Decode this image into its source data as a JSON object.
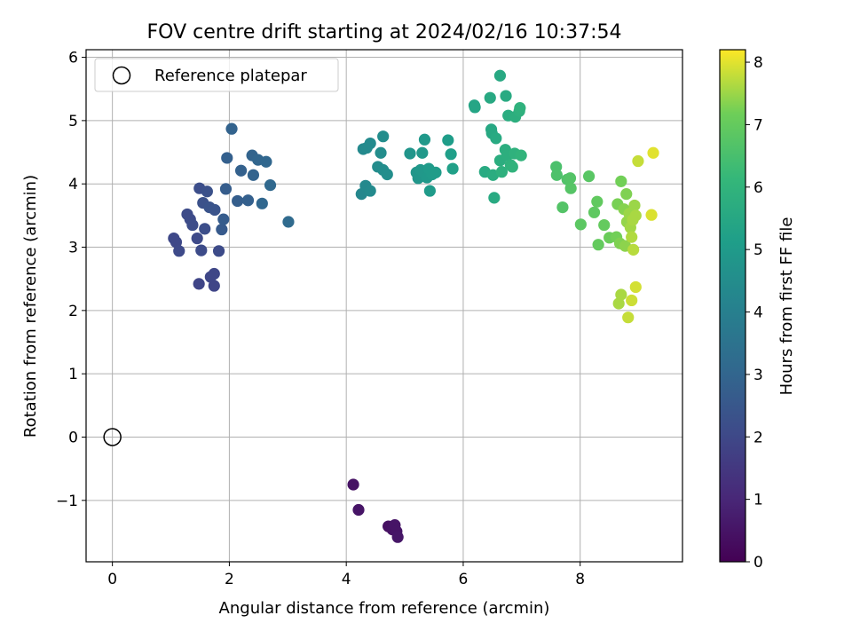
{
  "chart_data": {
    "type": "scatter",
    "title": "FOV centre drift starting at 2024/02/16 10:37:54",
    "xlabel": "Angular distance from reference (arcmin)",
    "ylabel": "Rotation from reference (arcmin)",
    "xlim": [
      -0.45,
      9.75
    ],
    "ylim": [
      -1.97,
      6.12
    ],
    "xticks": [
      0,
      2,
      4,
      6,
      8
    ],
    "xtick_labels": [
      "0",
      "2",
      "4",
      "6",
      "8"
    ],
    "yticks": [
      -1,
      0,
      1,
      2,
      3,
      4,
      5,
      6
    ],
    "ytick_labels": [
      "−1",
      "0",
      "1",
      "2",
      "3",
      "4",
      "5",
      "6"
    ],
    "grid": true,
    "legend": {
      "position": "top-left",
      "entries": [
        "Reference platepar"
      ]
    },
    "reference_point": {
      "x": 0,
      "y": 0,
      "label": "Reference platepar"
    },
    "colorbar": {
      "label": "Hours from first FF file",
      "min": 0,
      "max": 8.2,
      "ticks": [
        0,
        1,
        2,
        3,
        4,
        5,
        6,
        7,
        8
      ],
      "tick_labels": [
        "0",
        "1",
        "2",
        "3",
        "4",
        "5",
        "6",
        "7",
        "8"
      ],
      "colormap": "viridis"
    },
    "points": [
      {
        "x": 4.12,
        "y": -0.75,
        "c": 0.45
      },
      {
        "x": 4.21,
        "y": -1.15,
        "c": 0.5
      },
      {
        "x": 4.72,
        "y": -1.41,
        "c": 0.4
      },
      {
        "x": 4.79,
        "y": -1.46,
        "c": 0.45
      },
      {
        "x": 4.83,
        "y": -1.39,
        "c": 0.5
      },
      {
        "x": 4.86,
        "y": -1.49,
        "c": 0.5
      },
      {
        "x": 4.88,
        "y": -1.58,
        "c": 0.55
      },
      {
        "x": 1.05,
        "y": 3.14,
        "c": 2.0
      },
      {
        "x": 1.09,
        "y": 3.08,
        "c": 2.0
      },
      {
        "x": 1.14,
        "y": 2.94,
        "c": 2.05
      },
      {
        "x": 1.28,
        "y": 3.52,
        "c": 2.1
      },
      {
        "x": 1.33,
        "y": 3.44,
        "c": 2.1
      },
      {
        "x": 1.37,
        "y": 3.35,
        "c": 2.15
      },
      {
        "x": 1.45,
        "y": 3.14,
        "c": 2.05
      },
      {
        "x": 1.49,
        "y": 3.93,
        "c": 2.2
      },
      {
        "x": 1.52,
        "y": 2.95,
        "c": 2.1
      },
      {
        "x": 1.48,
        "y": 2.42,
        "c": 1.9
      },
      {
        "x": 1.55,
        "y": 3.7,
        "c": 2.3
      },
      {
        "x": 1.58,
        "y": 3.29,
        "c": 2.2
      },
      {
        "x": 1.62,
        "y": 3.88,
        "c": 2.3
      },
      {
        "x": 1.66,
        "y": 3.63,
        "c": 2.35
      },
      {
        "x": 1.68,
        "y": 2.53,
        "c": 1.95
      },
      {
        "x": 1.74,
        "y": 2.58,
        "c": 1.95
      },
      {
        "x": 1.75,
        "y": 3.59,
        "c": 2.4
      },
      {
        "x": 1.74,
        "y": 2.39,
        "c": 1.9
      },
      {
        "x": 1.82,
        "y": 2.94,
        "c": 2.1
      },
      {
        "x": 1.87,
        "y": 3.28,
        "c": 2.6
      },
      {
        "x": 1.9,
        "y": 3.44,
        "c": 2.65
      },
      {
        "x": 1.94,
        "y": 3.92,
        "c": 2.7
      },
      {
        "x": 1.96,
        "y": 4.41,
        "c": 2.8
      },
      {
        "x": 2.04,
        "y": 4.87,
        "c": 2.9
      },
      {
        "x": 2.14,
        "y": 3.73,
        "c": 2.75
      },
      {
        "x": 2.2,
        "y": 4.21,
        "c": 2.85
      },
      {
        "x": 2.32,
        "y": 3.74,
        "c": 2.8
      },
      {
        "x": 2.39,
        "y": 4.45,
        "c": 2.95
      },
      {
        "x": 2.41,
        "y": 4.14,
        "c": 2.9
      },
      {
        "x": 2.49,
        "y": 4.38,
        "c": 3.0
      },
      {
        "x": 2.56,
        "y": 3.69,
        "c": 3.05
      },
      {
        "x": 2.63,
        "y": 4.35,
        "c": 3.05
      },
      {
        "x": 2.7,
        "y": 3.98,
        "c": 3.1
      },
      {
        "x": 3.01,
        "y": 3.4,
        "c": 3.2
      },
      {
        "x": 4.26,
        "y": 3.84,
        "c": 4.3
      },
      {
        "x": 4.29,
        "y": 4.55,
        "c": 4.35
      },
      {
        "x": 4.33,
        "y": 3.97,
        "c": 4.35
      },
      {
        "x": 4.35,
        "y": 4.57,
        "c": 4.4
      },
      {
        "x": 4.41,
        "y": 4.64,
        "c": 4.4
      },
      {
        "x": 4.41,
        "y": 3.89,
        "c": 4.4
      },
      {
        "x": 4.54,
        "y": 4.27,
        "c": 4.45
      },
      {
        "x": 4.59,
        "y": 4.49,
        "c": 4.5
      },
      {
        "x": 4.63,
        "y": 4.75,
        "c": 4.5
      },
      {
        "x": 4.63,
        "y": 4.22,
        "c": 4.5
      },
      {
        "x": 4.7,
        "y": 4.15,
        "c": 4.55
      },
      {
        "x": 5.09,
        "y": 4.48,
        "c": 4.8
      },
      {
        "x": 5.2,
        "y": 4.18,
        "c": 4.85
      },
      {
        "x": 5.23,
        "y": 4.09,
        "c": 4.85
      },
      {
        "x": 5.27,
        "y": 4.22,
        "c": 4.9
      },
      {
        "x": 5.3,
        "y": 4.49,
        "c": 4.9
      },
      {
        "x": 5.31,
        "y": 4.19,
        "c": 4.9
      },
      {
        "x": 5.34,
        "y": 4.7,
        "c": 4.95
      },
      {
        "x": 5.38,
        "y": 4.1,
        "c": 4.95
      },
      {
        "x": 5.41,
        "y": 4.24,
        "c": 5.0
      },
      {
        "x": 5.43,
        "y": 3.89,
        "c": 5.0
      },
      {
        "x": 5.47,
        "y": 4.15,
        "c": 5.0
      },
      {
        "x": 5.53,
        "y": 4.18,
        "c": 5.05
      },
      {
        "x": 5.74,
        "y": 4.69,
        "c": 5.1
      },
      {
        "x": 5.79,
        "y": 4.47,
        "c": 5.15
      },
      {
        "x": 5.82,
        "y": 4.24,
        "c": 5.2
      },
      {
        "x": 6.19,
        "y": 5.24,
        "c": 5.4
      },
      {
        "x": 6.2,
        "y": 5.21,
        "c": 5.4
      },
      {
        "x": 6.37,
        "y": 4.19,
        "c": 5.6
      },
      {
        "x": 6.46,
        "y": 5.36,
        "c": 5.55
      },
      {
        "x": 6.48,
        "y": 4.86,
        "c": 5.5
      },
      {
        "x": 6.49,
        "y": 4.8,
        "c": 5.55
      },
      {
        "x": 6.51,
        "y": 4.14,
        "c": 5.7
      },
      {
        "x": 6.53,
        "y": 3.78,
        "c": 5.6
      },
      {
        "x": 6.56,
        "y": 4.72,
        "c": 5.6
      },
      {
        "x": 6.63,
        "y": 5.71,
        "c": 5.55
      },
      {
        "x": 6.63,
        "y": 4.37,
        "c": 5.75
      },
      {
        "x": 6.66,
        "y": 4.19,
        "c": 5.85
      },
      {
        "x": 6.72,
        "y": 4.54,
        "c": 5.75
      },
      {
        "x": 6.73,
        "y": 5.39,
        "c": 5.6
      },
      {
        "x": 6.75,
        "y": 4.45,
        "c": 5.8
      },
      {
        "x": 6.77,
        "y": 5.08,
        "c": 5.7
      },
      {
        "x": 6.81,
        "y": 4.3,
        "c": 5.9
      },
      {
        "x": 6.84,
        "y": 4.27,
        "c": 5.95
      },
      {
        "x": 6.88,
        "y": 4.48,
        "c": 5.9
      },
      {
        "x": 6.89,
        "y": 5.06,
        "c": 5.8
      },
      {
        "x": 6.96,
        "y": 5.15,
        "c": 5.85
      },
      {
        "x": 6.97,
        "y": 5.2,
        "c": 5.9
      },
      {
        "x": 6.99,
        "y": 4.45,
        "c": 6.0
      },
      {
        "x": 7.59,
        "y": 4.27,
        "c": 6.55
      },
      {
        "x": 7.6,
        "y": 4.14,
        "c": 6.6
      },
      {
        "x": 7.7,
        "y": 3.63,
        "c": 6.7
      },
      {
        "x": 7.78,
        "y": 4.07,
        "c": 6.65
      },
      {
        "x": 7.83,
        "y": 4.09,
        "c": 6.7
      },
      {
        "x": 7.84,
        "y": 3.93,
        "c": 6.75
      },
      {
        "x": 8.01,
        "y": 3.36,
        "c": 6.85
      },
      {
        "x": 8.15,
        "y": 4.12,
        "c": 6.8
      },
      {
        "x": 8.24,
        "y": 3.55,
        "c": 6.9
      },
      {
        "x": 8.29,
        "y": 3.72,
        "c": 6.95
      },
      {
        "x": 8.31,
        "y": 3.04,
        "c": 7.0
      },
      {
        "x": 8.41,
        "y": 3.35,
        "c": 7.0
      },
      {
        "x": 8.5,
        "y": 3.15,
        "c": 7.1
      },
      {
        "x": 8.62,
        "y": 3.16,
        "c": 7.2
      },
      {
        "x": 8.64,
        "y": 3.68,
        "c": 7.25
      },
      {
        "x": 8.66,
        "y": 2.11,
        "c": 7.6
      },
      {
        "x": 8.68,
        "y": 3.06,
        "c": 7.3
      },
      {
        "x": 8.7,
        "y": 4.04,
        "c": 7.2
      },
      {
        "x": 8.7,
        "y": 2.25,
        "c": 7.6
      },
      {
        "x": 8.75,
        "y": 3.6,
        "c": 7.35
      },
      {
        "x": 8.77,
        "y": 3.02,
        "c": 7.4
      },
      {
        "x": 8.79,
        "y": 3.84,
        "c": 7.3
      },
      {
        "x": 8.8,
        "y": 3.4,
        "c": 7.45
      },
      {
        "x": 8.82,
        "y": 1.89,
        "c": 7.8
      },
      {
        "x": 8.84,
        "y": 3.53,
        "c": 7.5
      },
      {
        "x": 8.86,
        "y": 3.31,
        "c": 7.55
      },
      {
        "x": 8.88,
        "y": 3.16,
        "c": 7.65
      },
      {
        "x": 8.88,
        "y": 2.16,
        "c": 7.85
      },
      {
        "x": 8.9,
        "y": 3.43,
        "c": 7.6
      },
      {
        "x": 8.91,
        "y": 2.96,
        "c": 7.7
      },
      {
        "x": 8.93,
        "y": 3.66,
        "c": 7.5
      },
      {
        "x": 8.95,
        "y": 3.5,
        "c": 7.6
      },
      {
        "x": 8.95,
        "y": 2.37,
        "c": 7.9
      },
      {
        "x": 8.99,
        "y": 4.36,
        "c": 7.8
      },
      {
        "x": 9.22,
        "y": 3.51,
        "c": 7.95
      },
      {
        "x": 9.25,
        "y": 4.49,
        "c": 8.0
      }
    ]
  }
}
